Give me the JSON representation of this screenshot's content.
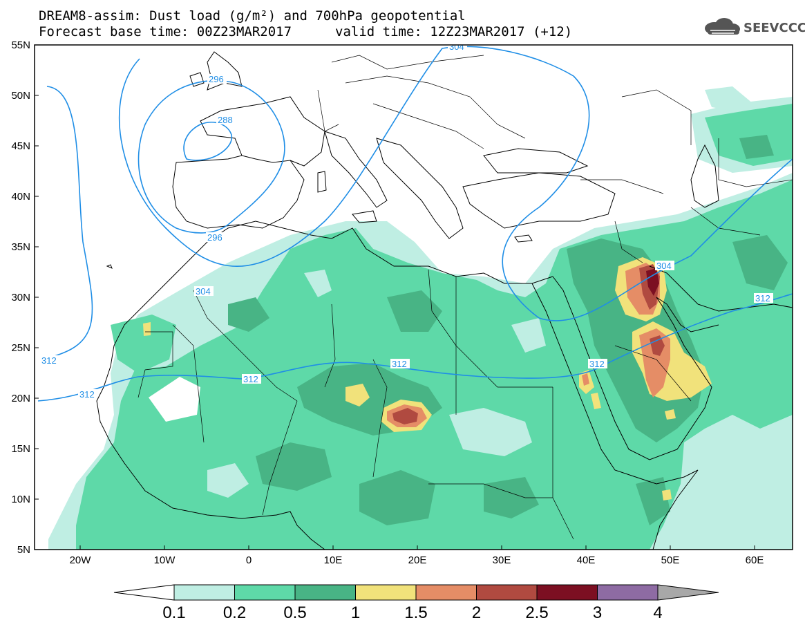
{
  "title": {
    "line1": "DREAM8-assim: Dust load (g/m²) and 700hPa geopotential",
    "line2": "Forecast base time: 00Z23MAR2017",
    "valid": "valid time: 12Z23MAR2017 (+12)"
  },
  "logo": {
    "text": "SEEVCCC",
    "icon": "cloud-logo-icon"
  },
  "axes": {
    "lat_labels": [
      "55N",
      "50N",
      "45N",
      "40N",
      "35N",
      "30N",
      "25N",
      "20N",
      "15N",
      "10N",
      "5N"
    ],
    "lon_labels": [
      "20W",
      "10W",
      "0",
      "10E",
      "20E",
      "30E",
      "40E",
      "50E",
      "60E"
    ]
  },
  "contour_labels": [
    "304",
    "296",
    "288",
    "296",
    "304",
    "312",
    "312",
    "312",
    "312",
    "312",
    "304",
    "312"
  ],
  "colorbar": {
    "ticks": [
      "0.1",
      "0.2",
      "0.5",
      "1",
      "1.5",
      "2",
      "2.5",
      "3",
      "4"
    ],
    "colors": [
      "#bfeee3",
      "#5ed9a8",
      "#48b485",
      "#f1e27b",
      "#e58d66",
      "#b04a40",
      "#7c0f22",
      "#8e6ba3"
    ],
    "low_color": "#ffffff",
    "high_color": "#a8a8a8"
  },
  "colors": {
    "geopotential_line": "#1f8ee6",
    "coastline": "#000000"
  }
}
